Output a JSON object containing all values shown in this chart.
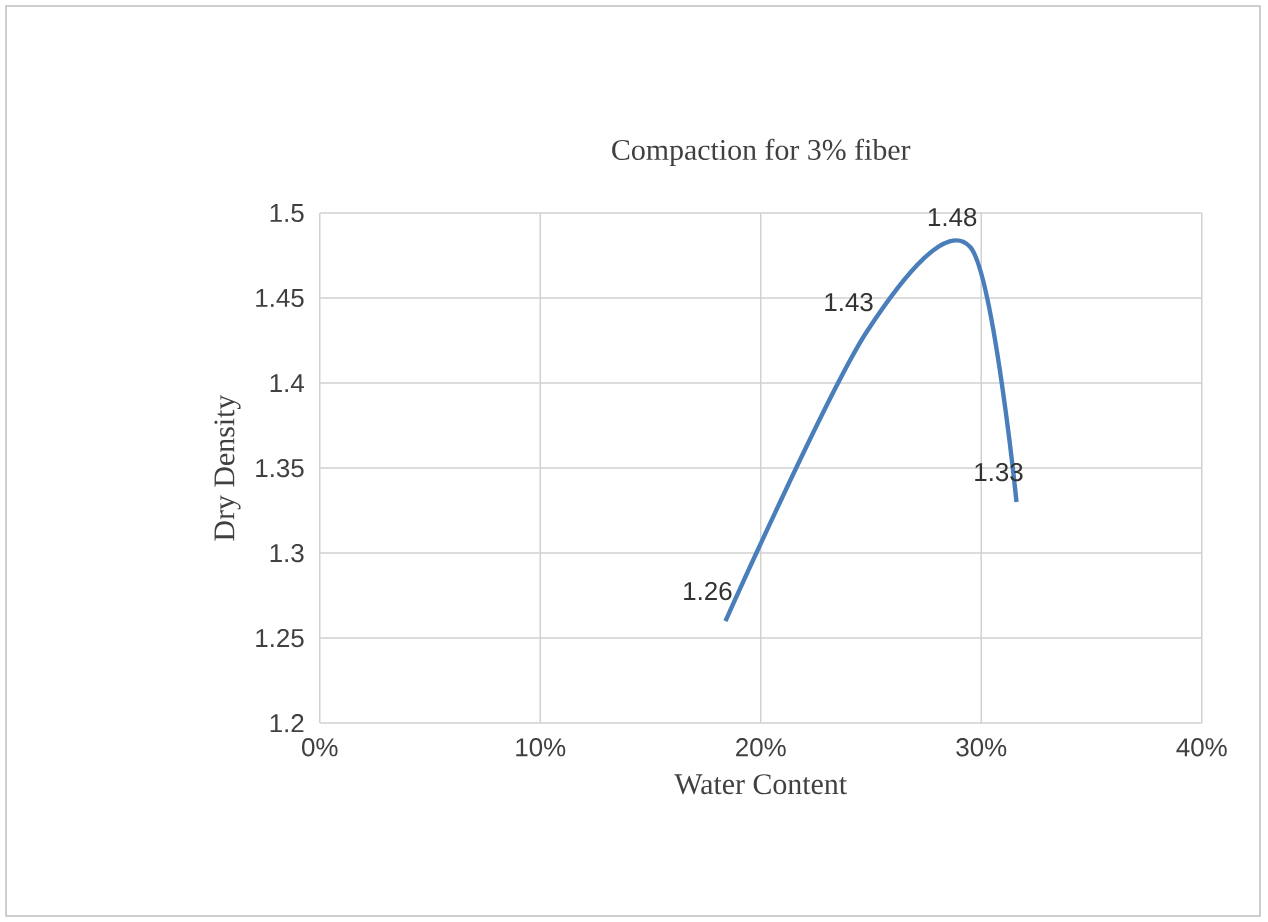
{
  "chart_data": {
    "type": "line",
    "title": "Compaction for 3% fiber",
    "xlabel": "Water Content",
    "ylabel": "Dry Density",
    "x": [
      0.184,
      0.248,
      0.295,
      0.316
    ],
    "series": [
      {
        "color": "#4a7ebb",
        "values": [
          1.26,
          1.43,
          1.48,
          1.33
        ]
      }
    ],
    "xlim": [
      0,
      0.4
    ],
    "xticks": [
      {
        "value": 0,
        "label": "0%"
      },
      {
        "value": 0.1,
        "label": "10%"
      },
      {
        "value": 0.2,
        "label": "20%"
      },
      {
        "value": 0.3,
        "label": "30%"
      },
      {
        "value": 0.4,
        "label": "40%"
      }
    ],
    "ylim": [
      1.2,
      1.5
    ],
    "yticks": [
      1.2,
      1.25,
      1.3,
      1.35,
      1.4,
      1.45,
      1.5
    ],
    "grid": true,
    "marker": "none",
    "line_style": "solid",
    "data_labels": true
  }
}
